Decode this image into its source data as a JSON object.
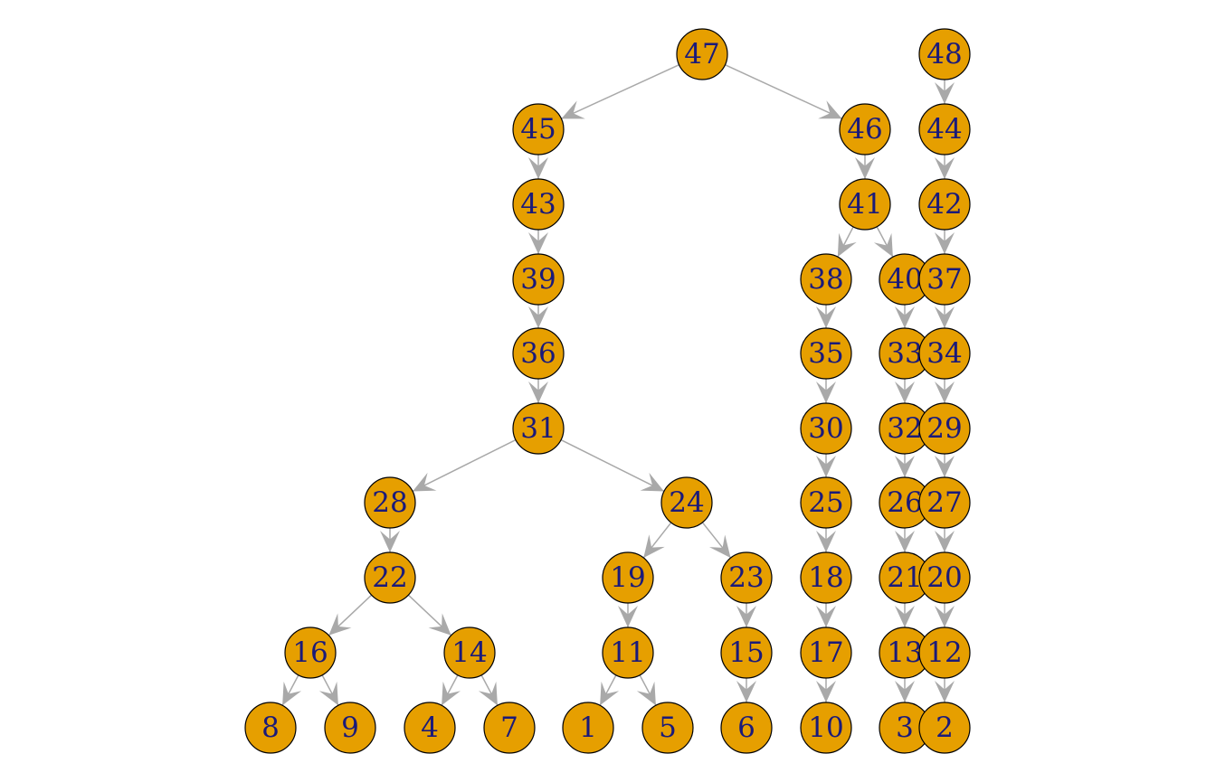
{
  "colors": {
    "node_fill": "#e69f00",
    "node_stroke": "#000000",
    "edge": "#a9a9a9",
    "label": "#1a1a7a",
    "background": "#ffffff"
  },
  "nodes": [
    {
      "id": "47",
      "label": "47"
    },
    {
      "id": "48",
      "label": "48"
    },
    {
      "id": "45",
      "label": "45"
    },
    {
      "id": "46",
      "label": "46"
    },
    {
      "id": "44",
      "label": "44"
    },
    {
      "id": "43",
      "label": "43"
    },
    {
      "id": "41",
      "label": "41"
    },
    {
      "id": "42",
      "label": "42"
    },
    {
      "id": "39",
      "label": "39"
    },
    {
      "id": "38",
      "label": "38"
    },
    {
      "id": "40",
      "label": "40"
    },
    {
      "id": "37",
      "label": "37"
    },
    {
      "id": "36",
      "label": "36"
    },
    {
      "id": "35",
      "label": "35"
    },
    {
      "id": "33",
      "label": "33"
    },
    {
      "id": "34",
      "label": "34"
    },
    {
      "id": "31",
      "label": "31"
    },
    {
      "id": "30",
      "label": "30"
    },
    {
      "id": "32",
      "label": "32"
    },
    {
      "id": "29",
      "label": "29"
    },
    {
      "id": "28",
      "label": "28"
    },
    {
      "id": "24",
      "label": "24"
    },
    {
      "id": "25",
      "label": "25"
    },
    {
      "id": "26",
      "label": "26"
    },
    {
      "id": "27",
      "label": "27"
    },
    {
      "id": "22",
      "label": "22"
    },
    {
      "id": "19",
      "label": "19"
    },
    {
      "id": "23",
      "label": "23"
    },
    {
      "id": "18",
      "label": "18"
    },
    {
      "id": "21",
      "label": "21"
    },
    {
      "id": "20",
      "label": "20"
    },
    {
      "id": "16",
      "label": "16"
    },
    {
      "id": "14",
      "label": "14"
    },
    {
      "id": "11",
      "label": "11"
    },
    {
      "id": "15",
      "label": "15"
    },
    {
      "id": "17",
      "label": "17"
    },
    {
      "id": "13",
      "label": "13"
    },
    {
      "id": "12",
      "label": "12"
    },
    {
      "id": "8",
      "label": "8"
    },
    {
      "id": "9",
      "label": "9"
    },
    {
      "id": "4",
      "label": "4"
    },
    {
      "id": "7",
      "label": "7"
    },
    {
      "id": "1",
      "label": "1"
    },
    {
      "id": "5",
      "label": "5"
    },
    {
      "id": "6",
      "label": "6"
    },
    {
      "id": "10",
      "label": "10"
    },
    {
      "id": "3",
      "label": "3"
    },
    {
      "id": "2",
      "label": "2"
    }
  ],
  "edges": [
    [
      "47",
      "45"
    ],
    [
      "47",
      "46"
    ],
    [
      "48",
      "44"
    ],
    [
      "45",
      "43"
    ],
    [
      "43",
      "39"
    ],
    [
      "39",
      "36"
    ],
    [
      "36",
      "31"
    ],
    [
      "31",
      "28"
    ],
    [
      "31",
      "24"
    ],
    [
      "28",
      "22"
    ],
    [
      "22",
      "16"
    ],
    [
      "22",
      "14"
    ],
    [
      "16",
      "8"
    ],
    [
      "16",
      "9"
    ],
    [
      "14",
      "4"
    ],
    [
      "14",
      "7"
    ],
    [
      "24",
      "19"
    ],
    [
      "24",
      "23"
    ],
    [
      "19",
      "11"
    ],
    [
      "11",
      "1"
    ],
    [
      "11",
      "5"
    ],
    [
      "23",
      "15"
    ],
    [
      "15",
      "6"
    ],
    [
      "46",
      "41"
    ],
    [
      "41",
      "38"
    ],
    [
      "41",
      "40"
    ],
    [
      "38",
      "35"
    ],
    [
      "35",
      "30"
    ],
    [
      "30",
      "25"
    ],
    [
      "25",
      "18"
    ],
    [
      "18",
      "17"
    ],
    [
      "17",
      "10"
    ],
    [
      "40",
      "33"
    ],
    [
      "33",
      "32"
    ],
    [
      "32",
      "26"
    ],
    [
      "26",
      "21"
    ],
    [
      "21",
      "13"
    ],
    [
      "13",
      "3"
    ],
    [
      "44",
      "42"
    ],
    [
      "42",
      "37"
    ],
    [
      "37",
      "34"
    ],
    [
      "34",
      "29"
    ],
    [
      "29",
      "27"
    ],
    [
      "27",
      "20"
    ],
    [
      "20",
      "12"
    ],
    [
      "12",
      "2"
    ]
  ]
}
